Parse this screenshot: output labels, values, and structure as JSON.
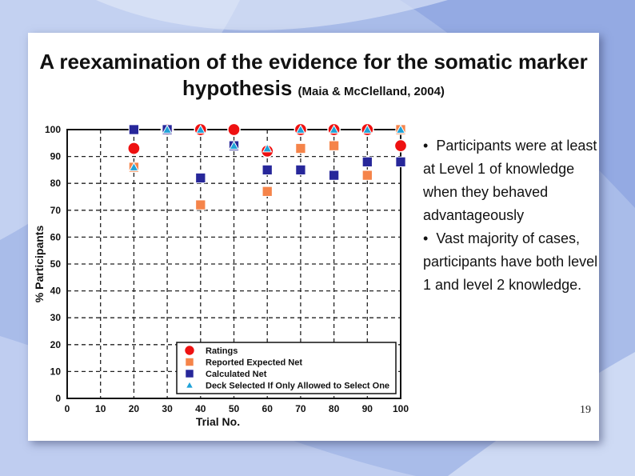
{
  "slide": {
    "title_main": "A reexamination of the evidence for the somatic marker hypothesis",
    "title_cite": "(Maia & McClelland, 2004)",
    "bullets": [
      "Participants were at least at Level 1 of knowledge when they behaved advantageously",
      "Vast majority of cases, participants have both level 1 and level 2 knowledge."
    ],
    "bullet_glyph": "•",
    "page_number": "19"
  },
  "chart_data": {
    "type": "scatter",
    "xlabel": "Trial No.",
    "ylabel": "% Participants",
    "xlim": [
      0,
      100
    ],
    "ylim": [
      0,
      100
    ],
    "xticks": [
      0,
      10,
      20,
      30,
      40,
      50,
      60,
      70,
      80,
      90,
      100
    ],
    "yticks": [
      0,
      10,
      20,
      30,
      40,
      50,
      60,
      70,
      80,
      90,
      100
    ],
    "grid": true,
    "legend_position": "bottom-right",
    "series": [
      {
        "name": "Ratings",
        "marker": "circle",
        "color": "#ee1111",
        "x": [
          20,
          30,
          40,
          50,
          60,
          70,
          80,
          90,
          100
        ],
        "y": [
          93,
          100,
          100,
          100,
          92,
          100,
          100,
          100,
          94
        ]
      },
      {
        "name": "Reported Expected Net",
        "marker": "square",
        "color": "#f5844a",
        "x": [
          20,
          30,
          40,
          50,
          60,
          70,
          80,
          90,
          100
        ],
        "y": [
          86,
          100,
          72,
          94,
          77,
          93,
          94,
          83,
          100
        ]
      },
      {
        "name": "Calculated Net",
        "marker": "square",
        "color": "#27279a",
        "x": [
          20,
          30,
          40,
          50,
          60,
          70,
          80,
          90,
          100
        ],
        "y": [
          100,
          100,
          82,
          94,
          85,
          85,
          83,
          88,
          88
        ]
      },
      {
        "name": "Deck Selected If Only Allowed to Select One",
        "marker": "triangle",
        "color": "#1fa2d8",
        "x": [
          20,
          30,
          40,
          50,
          60,
          70,
          80,
          90,
          100
        ],
        "y": [
          86,
          100,
          100,
          94,
          93,
          100,
          100,
          100,
          100
        ]
      }
    ]
  }
}
